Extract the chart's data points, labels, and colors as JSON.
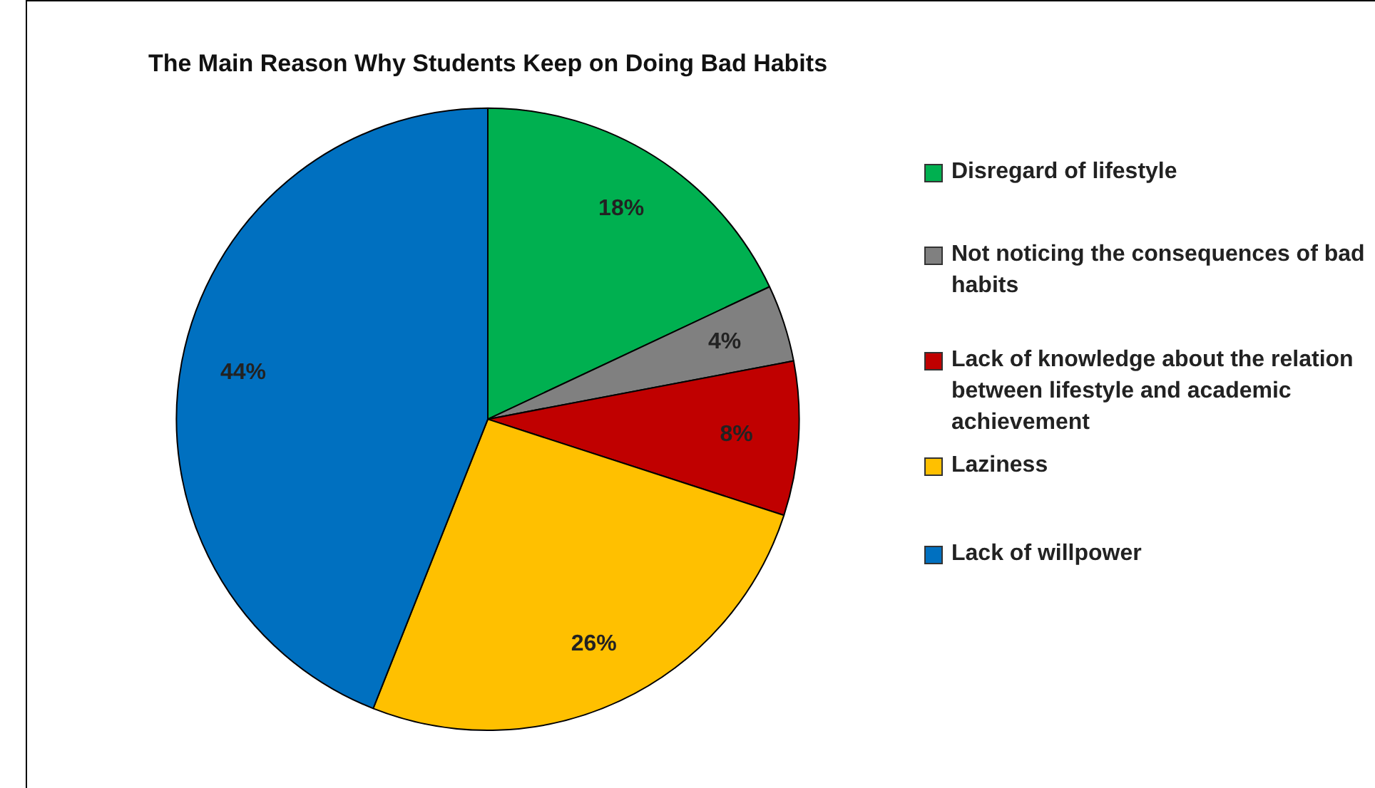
{
  "chart_data": {
    "type": "pie",
    "title": "The Main Reason Why Students Keep on Doing Bad Habits",
    "categories": [
      "Disregard of lifestyle",
      "Not noticing the consequences of bad habits",
      "Lack of knowledge about the relation between lifestyle  and academic achievement",
      "Laziness",
      "Lack of willpower"
    ],
    "values": [
      18,
      4,
      8,
      26,
      44
    ],
    "colors": [
      "#00b050",
      "#808080",
      "#c00000",
      "#ffc000",
      "#0070c0"
    ],
    "value_labels": [
      "18%",
      "4%",
      "8%",
      "26%",
      "44%"
    ],
    "legend": "right"
  }
}
